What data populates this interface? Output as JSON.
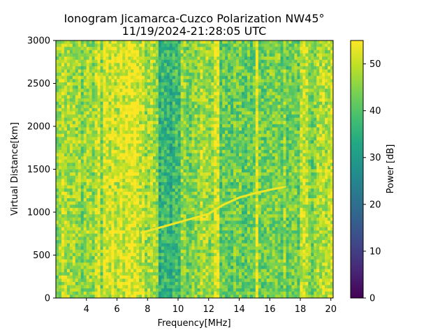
{
  "chart_data": {
    "type": "heatmap",
    "title_line1": "Ionogram Jicamarca-Cuzco Polarization NW45°",
    "title_line2": "11/19/2024-21:28:05 UTC",
    "xlabel": "Frequency[MHz]",
    "ylabel": "Virtual Distance[km]",
    "colorbar_label": "Power [dB]",
    "colormap": "viridis",
    "xlim": [
      2.0,
      20.15
    ],
    "ylim": [
      0,
      3000
    ],
    "clim": [
      0,
      55
    ],
    "x_ticks": [
      4,
      6,
      8,
      10,
      12,
      14,
      16,
      18,
      20
    ],
    "y_ticks": [
      0,
      500,
      1000,
      1500,
      2000,
      2500,
      3000
    ],
    "colorbar_ticks": [
      0,
      10,
      20,
      30,
      40,
      50
    ],
    "background_band_levels_db": [
      {
        "f_start": 2.0,
        "f_end": 2.4,
        "level": 44
      },
      {
        "f_start": 2.4,
        "f_end": 2.5,
        "level": 52
      },
      {
        "f_start": 2.5,
        "f_end": 4.5,
        "level": 45
      },
      {
        "f_start": 4.5,
        "f_end": 4.9,
        "level": 52
      },
      {
        "f_start": 4.9,
        "f_end": 5.1,
        "level": 42
      },
      {
        "f_start": 5.1,
        "f_end": 7.5,
        "level": 52
      },
      {
        "f_start": 7.5,
        "f_end": 8.7,
        "level": 48
      },
      {
        "f_start": 8.7,
        "f_end": 10.2,
        "level": 36
      },
      {
        "f_start": 10.2,
        "f_end": 11.2,
        "level": 44
      },
      {
        "f_start": 11.2,
        "f_end": 12.4,
        "level": 47
      },
      {
        "f_start": 12.4,
        "f_end": 12.7,
        "level": 52
      },
      {
        "f_start": 12.7,
        "f_end": 15.0,
        "level": 42
      },
      {
        "f_start": 15.0,
        "f_end": 15.3,
        "level": 52
      },
      {
        "f_start": 15.3,
        "f_end": 17.9,
        "level": 44
      },
      {
        "f_start": 17.9,
        "f_end": 18.5,
        "level": 51
      },
      {
        "f_start": 18.5,
        "f_end": 19.0,
        "level": 44
      },
      {
        "f_start": 19.0,
        "f_end": 20.15,
        "level": 49
      }
    ],
    "echo_trace": [
      {
        "f": 7.6,
        "d": 760
      },
      {
        "f": 9.0,
        "d": 830
      },
      {
        "f": 10.5,
        "d": 905
      },
      {
        "f": 12.0,
        "d": 980
      },
      {
        "f": 13.0,
        "d": 1090
      },
      {
        "f": 14.0,
        "d": 1170
      },
      {
        "f": 15.0,
        "d": 1220
      },
      {
        "f": 16.0,
        "d": 1260
      },
      {
        "f": 17.0,
        "d": 1295
      }
    ],
    "echo_level_db": 54
  }
}
